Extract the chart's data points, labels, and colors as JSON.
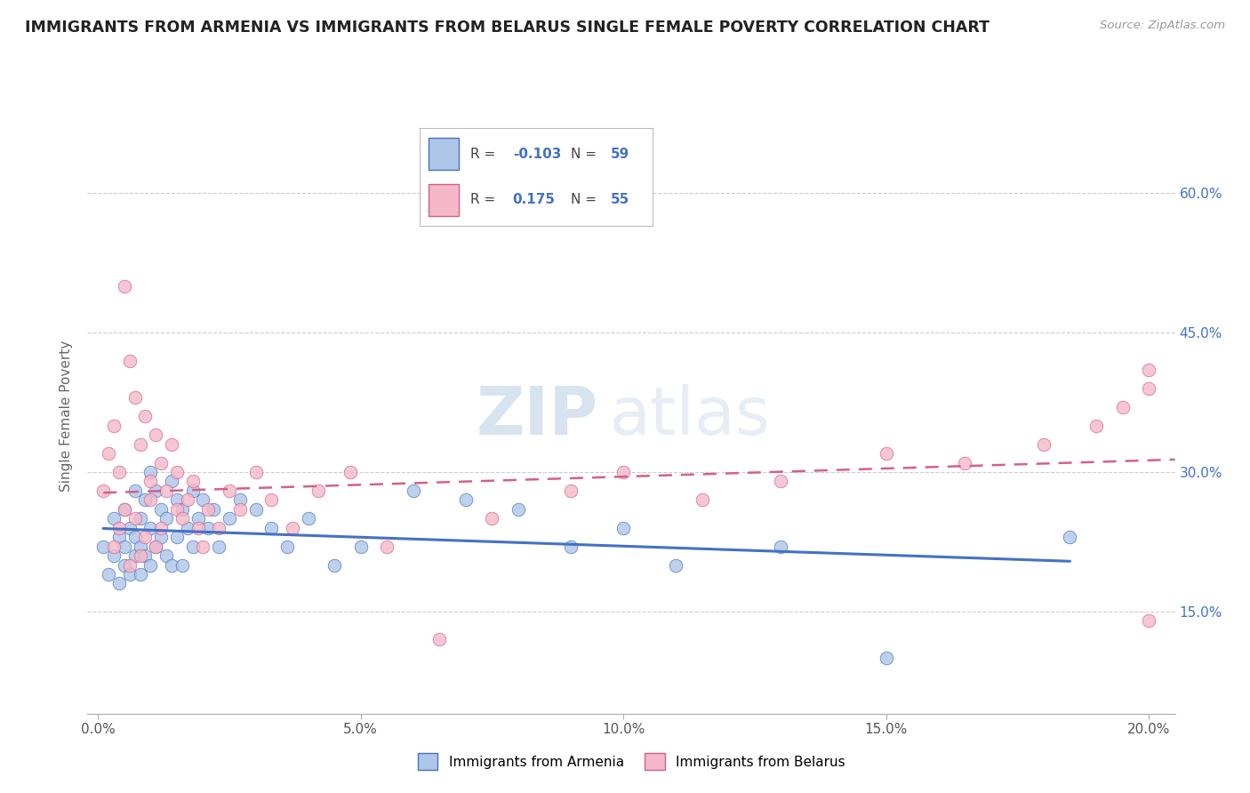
{
  "title": "IMMIGRANTS FROM ARMENIA VS IMMIGRANTS FROM BELARUS SINGLE FEMALE POVERTY CORRELATION CHART",
  "source": "Source: ZipAtlas.com",
  "ylabel": "Single Female Poverty",
  "y_ticks": [
    "15.0%",
    "30.0%",
    "45.0%",
    "60.0%"
  ],
  "y_tick_vals": [
    0.15,
    0.3,
    0.45,
    0.6
  ],
  "x_tick_vals": [
    0.0,
    0.05,
    0.1,
    0.15,
    0.2
  ],
  "x_tick_labels": [
    "0.0%",
    "5.0%",
    "10.0%",
    "15.0%",
    "20.0%"
  ],
  "x_lim": [
    -0.002,
    0.205
  ],
  "y_lim": [
    0.04,
    0.68
  ],
  "r_armenia": -0.103,
  "n_armenia": 59,
  "r_belarus": 0.175,
  "n_belarus": 55,
  "color_armenia": "#aec6e8",
  "color_belarus": "#f4b8c8",
  "line_color_armenia": "#4472c4",
  "line_color_belarus": "#d4608a",
  "watermark_zip": "ZIP",
  "watermark_atlas": "atlas",
  "armenia_x": [
    0.001,
    0.002,
    0.003,
    0.003,
    0.004,
    0.004,
    0.005,
    0.005,
    0.005,
    0.006,
    0.006,
    0.007,
    0.007,
    0.007,
    0.008,
    0.008,
    0.008,
    0.009,
    0.009,
    0.01,
    0.01,
    0.01,
    0.011,
    0.011,
    0.012,
    0.012,
    0.013,
    0.013,
    0.014,
    0.014,
    0.015,
    0.015,
    0.016,
    0.016,
    0.017,
    0.018,
    0.018,
    0.019,
    0.02,
    0.021,
    0.022,
    0.023,
    0.025,
    0.027,
    0.03,
    0.033,
    0.036,
    0.04,
    0.045,
    0.05,
    0.06,
    0.07,
    0.08,
    0.09,
    0.1,
    0.11,
    0.13,
    0.15,
    0.185
  ],
  "armenia_y": [
    0.22,
    0.19,
    0.25,
    0.21,
    0.23,
    0.18,
    0.26,
    0.22,
    0.2,
    0.24,
    0.19,
    0.28,
    0.23,
    0.21,
    0.25,
    0.22,
    0.19,
    0.27,
    0.21,
    0.3,
    0.24,
    0.2,
    0.28,
    0.22,
    0.26,
    0.23,
    0.25,
    0.21,
    0.29,
    0.2,
    0.27,
    0.23,
    0.26,
    0.2,
    0.24,
    0.28,
    0.22,
    0.25,
    0.27,
    0.24,
    0.26,
    0.22,
    0.25,
    0.27,
    0.26,
    0.24,
    0.22,
    0.25,
    0.2,
    0.22,
    0.28,
    0.27,
    0.26,
    0.22,
    0.24,
    0.2,
    0.22,
    0.1,
    0.23
  ],
  "belarus_x": [
    0.001,
    0.002,
    0.003,
    0.003,
    0.004,
    0.004,
    0.005,
    0.005,
    0.006,
    0.006,
    0.007,
    0.007,
    0.008,
    0.008,
    0.009,
    0.009,
    0.01,
    0.01,
    0.011,
    0.011,
    0.012,
    0.012,
    0.013,
    0.014,
    0.015,
    0.015,
    0.016,
    0.017,
    0.018,
    0.019,
    0.02,
    0.021,
    0.023,
    0.025,
    0.027,
    0.03,
    0.033,
    0.037,
    0.042,
    0.048,
    0.055,
    0.065,
    0.075,
    0.09,
    0.1,
    0.115,
    0.13,
    0.15,
    0.165,
    0.18,
    0.19,
    0.195,
    0.2,
    0.2,
    0.2
  ],
  "belarus_y": [
    0.28,
    0.32,
    0.35,
    0.22,
    0.3,
    0.24,
    0.5,
    0.26,
    0.42,
    0.2,
    0.38,
    0.25,
    0.33,
    0.21,
    0.36,
    0.23,
    0.29,
    0.27,
    0.34,
    0.22,
    0.31,
    0.24,
    0.28,
    0.33,
    0.26,
    0.3,
    0.25,
    0.27,
    0.29,
    0.24,
    0.22,
    0.26,
    0.24,
    0.28,
    0.26,
    0.3,
    0.27,
    0.24,
    0.28,
    0.3,
    0.22,
    0.12,
    0.25,
    0.28,
    0.3,
    0.27,
    0.29,
    0.32,
    0.31,
    0.33,
    0.35,
    0.37,
    0.39,
    0.41,
    0.14
  ]
}
